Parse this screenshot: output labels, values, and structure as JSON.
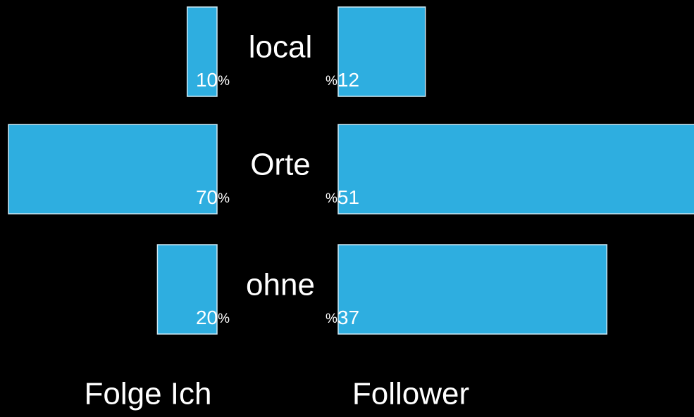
{
  "chart_data": {
    "type": "butterfly",
    "categories": [
      "local",
      "Orte",
      "ohne"
    ],
    "series": [
      {
        "name": "Folge Ich",
        "color": "#2eaee0",
        "values": [
          10,
          70,
          20
        ],
        "value_labels": [
          "10%",
          "70%",
          "20%"
        ],
        "xlim": [
          0,
          70
        ]
      },
      {
        "name": "Follower",
        "color": "#2eaee0",
        "values": [
          12,
          51,
          37
        ],
        "value_labels": [
          "%12",
          "%51",
          "%37"
        ],
        "xlim": [
          0,
          49
        ]
      }
    ]
  }
}
